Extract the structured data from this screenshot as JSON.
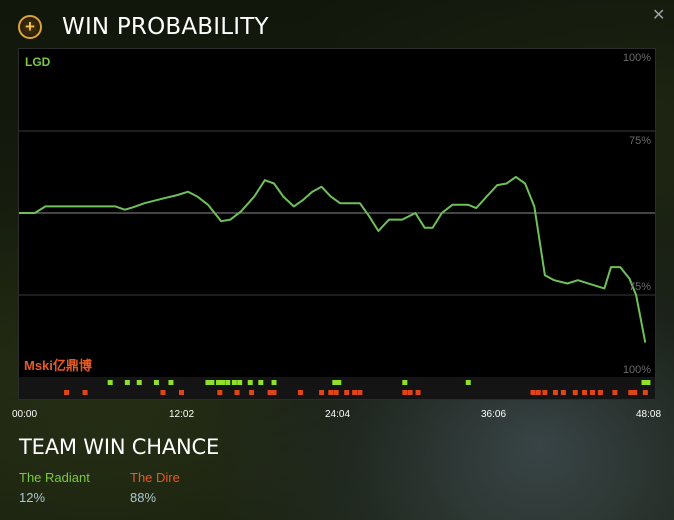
{
  "header": {
    "title": "WIN PROBABILITY",
    "icon": "plus-icon"
  },
  "close": {
    "glyph": "✕"
  },
  "chart_labels": {
    "radiant_team": "LGD",
    "dire_team": "Mski亿鼎博"
  },
  "chart_data": {
    "type": "line",
    "title": "WIN PROBABILITY",
    "y_tick_labels": [
      "100%",
      "75%",
      "75%",
      "100%"
    ],
    "x_tick_labels": [
      "00:00",
      "12:02",
      "24:04",
      "36:06",
      "48:08"
    ],
    "xlim_minutes": [
      0,
      48.133
    ],
    "ylim_radiant_win_pct": [
      0,
      100
    ],
    "grid": true,
    "line_color": "#6fc05a",
    "series": [
      {
        "x_minutes": [
          0,
          1.5,
          3,
          5,
          7,
          9.5,
          10.5,
          12.5,
          13.5,
          15,
          16,
          17,
          18,
          19,
          19.7,
          21,
          22,
          23,
          24,
          25,
          26,
          27,
          28,
          29,
          30,
          31,
          32,
          33,
          34,
          35,
          36,
          36.8,
          37.5,
          38.2,
          39,
          40,
          41,
          42,
          43,
          43.5,
          44,
          45,
          46.5,
          47.3
        ],
        "y_radiant_win_pct": [
          50,
          50,
          52,
          52,
          52,
          52,
          51,
          52,
          54,
          55,
          56,
          57,
          55,
          53,
          49,
          50,
          52,
          56,
          61,
          60,
          55,
          52,
          55,
          57,
          53,
          52,
          52,
          52,
          48,
          43,
          46,
          46,
          46,
          49,
          45,
          45,
          51,
          54,
          54,
          54,
          53,
          56,
          60,
          61
        ],
        "y_pct_tail": [
          62,
          59,
          52,
          37,
          35,
          33,
          32,
          33,
          31,
          30,
          37,
          37,
          33,
          23,
          16
        ]
      }
    ],
    "event_markers": {
      "radiant_color": "#8ee02a",
      "dire_color": "#e0451a",
      "radiant_minutes": [
        6.9,
        8.2,
        9.1,
        10.4,
        11.5,
        14.3,
        14.6,
        15.1,
        15.4,
        15.8,
        16.3,
        16.7,
        17.5,
        18.3,
        19.3,
        23.9,
        24.2,
        29.2,
        34.0,
        47.3,
        47.6
      ],
      "dire_minutes": [
        3.6,
        5.0,
        10.9,
        12.3,
        15.2,
        16.5,
        17.6,
        19.0,
        19.3,
        21.3,
        22.9,
        23.6,
        24.0,
        24.8,
        25.4,
        25.8,
        29.2,
        29.6,
        30.2,
        38.9,
        39.3,
        39.8,
        40.6,
        41.2,
        42.1,
        42.8,
        43.4,
        44.0,
        45.1,
        46.3,
        46.6,
        47.4
      ]
    }
  },
  "team_win_chance": {
    "title": "TEAM WIN CHANCE",
    "radiant": {
      "name": "The Radiant",
      "pct": "12%"
    },
    "dire": {
      "name": "The Dire",
      "pct": "88%"
    }
  }
}
